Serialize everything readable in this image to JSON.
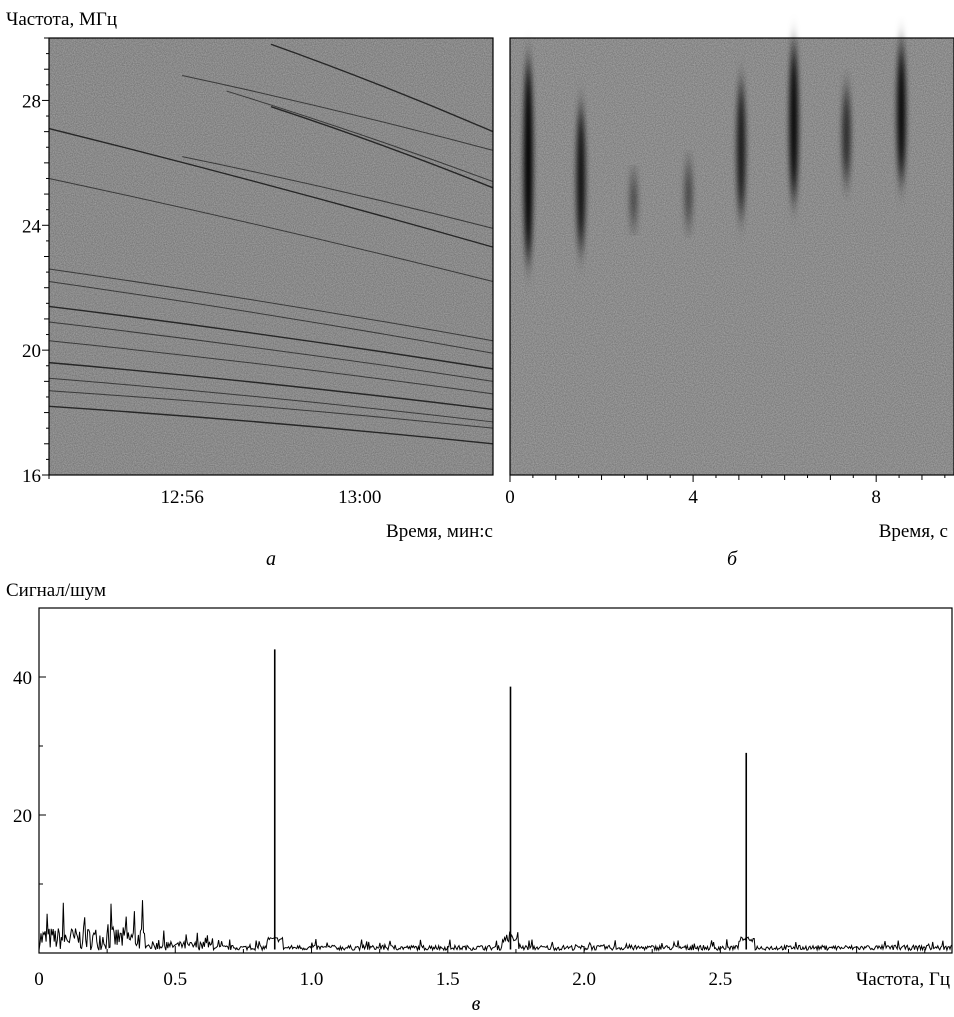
{
  "chart_data": [
    {
      "type": "heatmap",
      "panel_label": "а",
      "ylabel": "Частота, МГц",
      "xlabel": "Время, мин:с",
      "yticks": [
        "16",
        "20",
        "24",
        "28"
      ],
      "ytick_values": [
        16,
        20,
        24,
        28
      ],
      "ylim": [
        16,
        30
      ],
      "xticks": [
        "12:56",
        "13:00"
      ],
      "xlim": [
        "12:53",
        "13:03"
      ],
      "grid": false,
      "sweeps": [
        {
          "t_start": "12:53",
          "f_start": 27.1,
          "t_end": "13:03",
          "f_end": 23.3
        },
        {
          "t_start": "12:53",
          "f_start": 22.6,
          "t_end": "13:03",
          "f_end": 20.3
        },
        {
          "t_start": "12:53",
          "f_start": 22.2,
          "t_end": "13:03",
          "f_end": 19.9
        },
        {
          "t_start": "12:53",
          "f_start": 21.4,
          "t_end": "13:03",
          "f_end": 19.4
        },
        {
          "t_start": "12:53",
          "f_start": 20.9,
          "t_end": "13:03",
          "f_end": 19.0
        },
        {
          "t_start": "12:53",
          "f_start": 20.3,
          "t_end": "13:03",
          "f_end": 18.6
        },
        {
          "t_start": "12:53",
          "f_start": 19.6,
          "t_end": "13:03",
          "f_end": 18.1
        },
        {
          "t_start": "12:53",
          "f_start": 19.1,
          "t_end": "13:03",
          "f_end": 17.7
        },
        {
          "t_start": "12:53",
          "f_start": 18.7,
          "t_end": "13:03",
          "f_end": 17.5
        },
        {
          "t_start": "12:53",
          "f_start": 18.2,
          "t_end": "13:03",
          "f_end": 17.0
        },
        {
          "t_start": "12:53",
          "f_start": 25.5,
          "t_end": "13:03",
          "f_end": 22.2
        },
        {
          "t_start": "12:56",
          "f_start": 28.8,
          "t_end": "13:03",
          "f_end": 26.4
        },
        {
          "t_start": "12:58",
          "f_start": 29.8,
          "t_end": "13:03",
          "f_end": 27.0
        },
        {
          "t_start": "12:57",
          "f_start": 28.3,
          "t_end": "13:03",
          "f_end": 25.4
        },
        {
          "t_start": "12:56",
          "f_start": 26.2,
          "t_end": "13:03",
          "f_end": 23.9
        },
        {
          "t_start": "12:58",
          "f_start": 27.8,
          "t_end": "13:03",
          "f_end": 25.2
        }
      ]
    },
    {
      "type": "heatmap",
      "panel_label": "б",
      "xlabel": "Время, с",
      "xticks": [
        "0",
        "4",
        "8"
      ],
      "xtick_values": [
        0,
        4,
        8
      ],
      "xlim": [
        0,
        9.7
      ],
      "ylim": [
        16,
        30
      ],
      "grid": false,
      "pulses": [
        {
          "t": 0.4,
          "f_low": 22.8,
          "f_high": 29.3,
          "intensity": 1.0
        },
        {
          "t": 1.55,
          "f_low": 23.2,
          "f_high": 27.8,
          "intensity": 0.8
        },
        {
          "t": 2.7,
          "f_low": 24.0,
          "f_high": 25.6,
          "intensity": 0.2
        },
        {
          "t": 3.9,
          "f_low": 24.0,
          "f_high": 26.0,
          "intensity": 0.2
        },
        {
          "t": 5.05,
          "f_low": 24.3,
          "f_high": 28.6,
          "intensity": 0.7
        },
        {
          "t": 6.2,
          "f_low": 24.8,
          "f_high": 29.8,
          "intensity": 0.9
        },
        {
          "t": 7.35,
          "f_low": 25.4,
          "f_high": 28.4,
          "intensity": 0.5
        },
        {
          "t": 8.55,
          "f_low": 25.4,
          "f_high": 29.8,
          "intensity": 0.9
        }
      ]
    },
    {
      "type": "line",
      "panel_label": "в",
      "ylabel": "Сигнал/шум",
      "xlabel": "Частота, Гц",
      "xticks": [
        "0",
        "0.5",
        "1.0",
        "1.5",
        "2.0",
        "2.5"
      ],
      "xtick_values": [
        0,
        0.5,
        1.0,
        1.5,
        2.0,
        2.5
      ],
      "yticks": [
        "20",
        "40"
      ],
      "ytick_values": [
        20,
        40
      ],
      "xlim": [
        0,
        3.35
      ],
      "ylim": [
        0,
        50
      ],
      "grid": false,
      "peaks": [
        {
          "x": 0.865,
          "y": 44
        },
        {
          "x": 1.73,
          "y": 38.6
        },
        {
          "x": 2.595,
          "y": 29
        }
      ]
    }
  ]
}
